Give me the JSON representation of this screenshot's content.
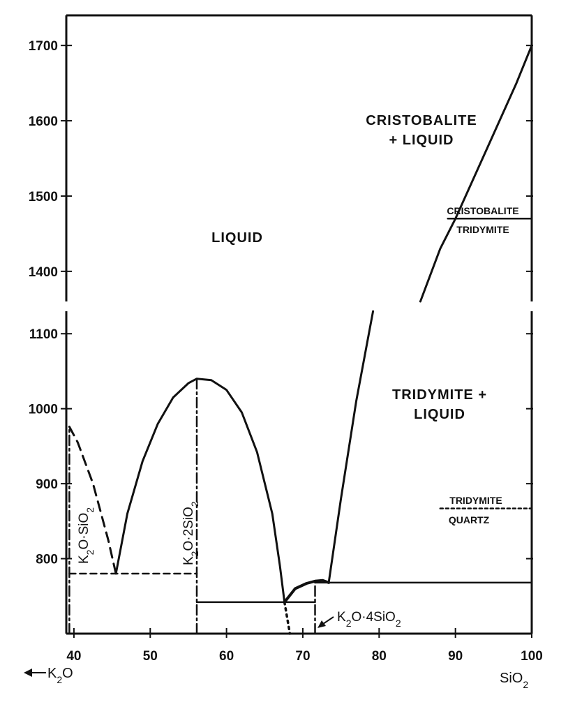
{
  "chart_data": {
    "type": "phase-diagram",
    "x_axis": {
      "ticks": [
        40,
        50,
        60,
        70,
        80,
        90,
        100
      ],
      "tick_labels": [
        "40",
        "50",
        "60",
        "70",
        "80",
        "90",
        "100"
      ],
      "range": [
        39,
        100
      ],
      "left_end_label": "K",
      "left_end_sub": "2",
      "left_end_tail": "O",
      "right_end_label": "SiO",
      "right_end_sub": "2"
    },
    "y_axis": {
      "upper_ticks": [
        1400,
        1500,
        1600,
        1700
      ],
      "lower_ticks": [
        800,
        900,
        1000,
        1100
      ],
      "upper_range": [
        1360,
        1740
      ],
      "lower_range": [
        700,
        1130
      ],
      "axis_break": true
    },
    "regions": [
      {
        "name": "liquid",
        "lines": [
          "LIQUID"
        ]
      },
      {
        "name": "cristobalite-liquid",
        "lines": [
          "CRISTOBALITE",
          "+ LIQUID"
        ]
      },
      {
        "name": "tridymite-liquid",
        "lines": [
          "TRIDYMITE +",
          "LIQUID"
        ]
      }
    ],
    "transitions": [
      {
        "name": "cristobalite-tridymite",
        "upper": "CRISTOBALITE",
        "lower": "TRIDYMITE",
        "temperature": 1470,
        "x_range": [
          89,
          100
        ]
      },
      {
        "name": "tridymite-quartz",
        "upper": "TRIDYMITE",
        "lower": "QUARTZ",
        "temperature": 867,
        "x_range": [
          88,
          100
        ]
      }
    ],
    "compounds": [
      {
        "name": "k2o-sio2",
        "main": "K",
        "sub1": "2",
        "mid": "O·SiO",
        "sub2": "2",
        "x": 39.4,
        "melting_point": 976
      },
      {
        "name": "k2o-2sio2",
        "main": "K",
        "sub1": "2",
        "mid": "O·2SiO",
        "sub2": "2",
        "x": 56.1,
        "melting_point": 1040
      },
      {
        "name": "k2o-4sio2",
        "main": "K",
        "sub1": "2",
        "mid": "O·4SiO",
        "sub2": "2",
        "x": 71.6,
        "melting_point": 770
      }
    ],
    "eutectics": [
      {
        "x": 45.5,
        "temperature": 780
      },
      {
        "x": 67.6,
        "temperature": 742
      },
      {
        "x": 73.4,
        "temperature": 768
      }
    ],
    "liquidus": {
      "k2o_sio2_branch": [
        [
          39.4,
          976
        ],
        [
          40.5,
          955
        ],
        [
          42.5,
          900
        ],
        [
          44.5,
          825
        ],
        [
          45.5,
          780
        ]
      ],
      "k2o_2sio2_dome": [
        [
          45.5,
          780
        ],
        [
          47,
          860
        ],
        [
          49,
          930
        ],
        [
          51,
          980
        ],
        [
          53,
          1015
        ],
        [
          55,
          1034
        ],
        [
          56.1,
          1040
        ],
        [
          58,
          1038
        ],
        [
          60,
          1025
        ],
        [
          62,
          995
        ],
        [
          64,
          942
        ],
        [
          66,
          860
        ],
        [
          67,
          790
        ],
        [
          67.6,
          742
        ]
      ],
      "k2o_4sio2_branch": [
        [
          67.6,
          742
        ],
        [
          69,
          760
        ],
        [
          70.5,
          767
        ],
        [
          71.6,
          770
        ],
        [
          72.6,
          771
        ],
        [
          73.4,
          768
        ]
      ],
      "metastable_extension": [
        [
          67.6,
          742
        ],
        [
          68.3,
          700
        ]
      ],
      "silica_lower": [
        [
          73.4,
          768
        ],
        [
          75,
          880
        ],
        [
          77,
          1010
        ],
        [
          79.2,
          1130
        ]
      ],
      "silica_upper": [
        [
          85.4,
          1360
        ],
        [
          88,
          1430
        ],
        [
          90,
          1470
        ],
        [
          94,
          1560
        ],
        [
          98,
          1650
        ],
        [
          100,
          1700
        ]
      ]
    },
    "solidus_lines": [
      {
        "name": "k2o-sio2-solidus",
        "style": "dashed",
        "temperature": 780,
        "x_range": [
          39.4,
          56.1
        ]
      },
      {
        "name": "k2o-2sio2-solidus",
        "style": "solid",
        "temperature": 742,
        "x_range": [
          56.1,
          71.6
        ]
      },
      {
        "name": "k2o-4sio2-solidus",
        "style": "solid",
        "temperature": 768,
        "x_range": [
          71.6,
          100
        ]
      }
    ]
  }
}
